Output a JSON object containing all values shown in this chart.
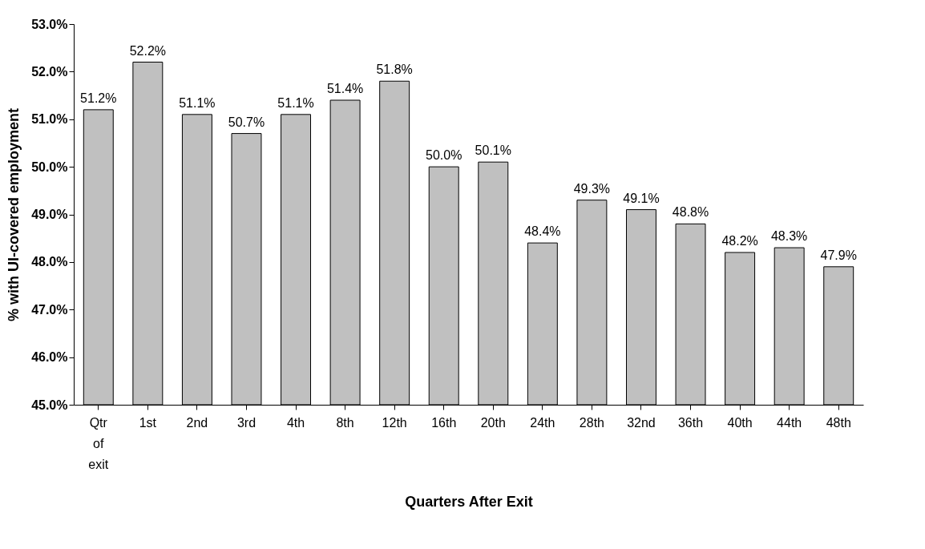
{
  "chart_data": {
    "type": "bar",
    "xlabel": "Quarters After Exit",
    "ylabel": "% with UI-covered employment",
    "categories": [
      "Qtr of exit",
      "1st",
      "2nd",
      "3rd",
      "4th",
      "8th",
      "12th",
      "16th",
      "20th",
      "24th",
      "28th",
      "32nd",
      "36th",
      "40th",
      "44th",
      "48th"
    ],
    "values": [
      51.2,
      52.2,
      51.1,
      50.7,
      51.1,
      51.4,
      51.8,
      50.0,
      50.1,
      48.4,
      49.3,
      49.1,
      48.8,
      48.2,
      48.3,
      47.9
    ],
    "value_labels": [
      "51.2%",
      "52.2%",
      "51.1%",
      "50.7%",
      "51.1%",
      "51.4%",
      "51.8%",
      "50.0%",
      "50.1%",
      "48.4%",
      "49.3%",
      "49.1%",
      "48.8%",
      "48.2%",
      "48.3%",
      "47.9%"
    ],
    "color": "#c0c0c0",
    "ylim": [
      45,
      53
    ],
    "yticks": [
      {
        "value": 45,
        "label": "45.0%"
      },
      {
        "value": 46,
        "label": "46.0%"
      },
      {
        "value": 47,
        "label": "47.0%"
      },
      {
        "value": 48,
        "label": "48.0%"
      },
      {
        "value": 49,
        "label": "49.0%"
      },
      {
        "value": 50,
        "label": "50.0%"
      },
      {
        "value": 51,
        "label": "51.0%"
      },
      {
        "value": 52,
        "label": "52.0%"
      },
      {
        "value": 53,
        "label": "53.0%"
      }
    ],
    "grid": false
  }
}
